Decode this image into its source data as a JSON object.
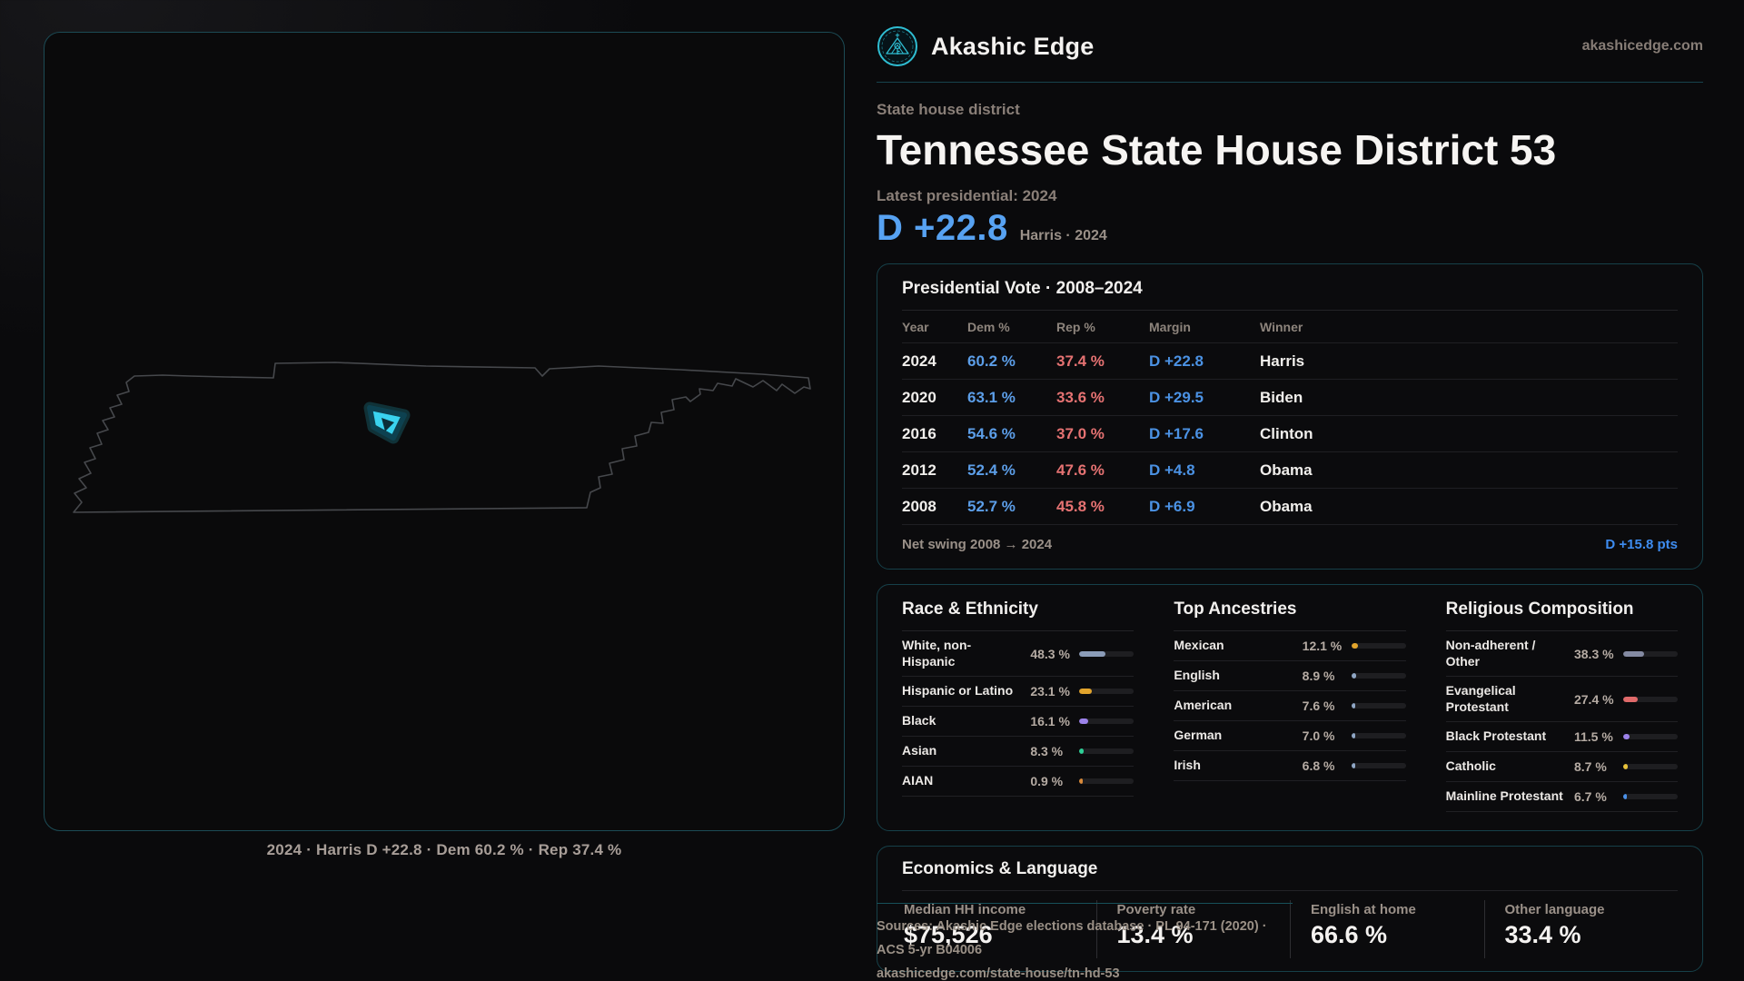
{
  "brand": {
    "name": "Akashic Edge",
    "domain": "akashicedge.com",
    "accent_color": "#2fbdd2"
  },
  "header": {
    "kicker": "State house district",
    "title": "Tennessee State House District 53",
    "latest_label": "Latest presidential: 2024",
    "margin": "D +22.8",
    "margin_sub": "Harris · 2024",
    "margin_color": "#57a2f2"
  },
  "map": {
    "caption": "2024 · Harris D +22.8 · Dem 60.2 % · Rep 37.4 %",
    "district_highlight_color": "#3ad3f0"
  },
  "presidential": {
    "title": "Presidential Vote · 2008–2024",
    "columns": [
      "Year",
      "Dem %",
      "Rep %",
      "Margin",
      "Winner"
    ],
    "rows": [
      {
        "year": "2024",
        "dem": "60.2 %",
        "rep": "37.4 %",
        "margin": "D +22.8",
        "winner": "Harris"
      },
      {
        "year": "2020",
        "dem": "63.1 %",
        "rep": "33.6 %",
        "margin": "D +29.5",
        "winner": "Biden"
      },
      {
        "year": "2016",
        "dem": "54.6 %",
        "rep": "37.0 %",
        "margin": "D +17.6",
        "winner": "Clinton"
      },
      {
        "year": "2012",
        "dem": "52.4 %",
        "rep": "47.6 %",
        "margin": "D +4.8",
        "winner": "Obama"
      },
      {
        "year": "2008",
        "dem": "52.7 %",
        "rep": "45.8 %",
        "margin": "D +6.9",
        "winner": "Obama"
      }
    ],
    "net_swing_label": "Net swing 2008 → 2024",
    "net_swing_value": "D +15.8 pts",
    "dem_color": "#5c9ee8",
    "rep_color": "#e57272"
  },
  "demographics": {
    "groups": [
      {
        "key": "race",
        "title": "Race & Ethnicity",
        "rows": [
          {
            "label": "White, non-Hispanic",
            "value": "48.3 %",
            "pct": 48.3,
            "color": "#8b9cb8"
          },
          {
            "label": "Hispanic or Latino",
            "value": "23.1 %",
            "pct": 23.1,
            "color": "#e2a42c"
          },
          {
            "label": "Black",
            "value": "16.1 %",
            "pct": 16.1,
            "color": "#9c82ea"
          },
          {
            "label": "Asian",
            "value": "8.3 %",
            "pct": 8.3,
            "color": "#2ecf96"
          },
          {
            "label": "AIAN",
            "value": "0.9 %",
            "pct": 0.9,
            "color": "#d98a3a"
          }
        ]
      },
      {
        "key": "ancestries",
        "title": "Top Ancestries",
        "rows": [
          {
            "label": "Mexican",
            "value": "12.1 %",
            "pct": 12.1,
            "color": "#e2a42c"
          },
          {
            "label": "English",
            "value": "8.9 %",
            "pct": 8.9,
            "color": "#8fa6c4"
          },
          {
            "label": "American",
            "value": "7.6 %",
            "pct": 7.6,
            "color": "#8fa6c4"
          },
          {
            "label": "German",
            "value": "7.0 %",
            "pct": 7.0,
            "color": "#8fa6c4"
          },
          {
            "label": "Irish",
            "value": "6.8 %",
            "pct": 6.8,
            "color": "#8fa6c4"
          }
        ]
      },
      {
        "key": "religion",
        "title": "Religious Composition",
        "rows": [
          {
            "label": "Non-adherent / Other",
            "value": "38.3 %",
            "pct": 38.3,
            "color": "#848aa2"
          },
          {
            "label": "Evangelical Protestant",
            "value": "27.4 %",
            "pct": 27.4,
            "color": "#e06a6a"
          },
          {
            "label": "Black Protestant",
            "value": "11.5 %",
            "pct": 11.5,
            "color": "#9c82ea"
          },
          {
            "label": "Catholic",
            "value": "8.7 %",
            "pct": 8.7,
            "color": "#e8c33a"
          },
          {
            "label": "Mainline Protestant",
            "value": "6.7 %",
            "pct": 6.7,
            "color": "#4a90e8"
          }
        ]
      }
    ]
  },
  "economics": {
    "title": "Economics & Language",
    "stats": [
      {
        "label": "Median HH income",
        "value": "$75,526"
      },
      {
        "label": "Poverty rate",
        "value": "13.4 %"
      },
      {
        "label": "English at home",
        "value": "66.6 %"
      },
      {
        "label": "Other language",
        "value": "33.4 %"
      }
    ]
  },
  "sources": {
    "line1": "Sources: Akashic Edge elections database · PL 94-171 (2020) · ACS 5-yr B04006",
    "line2": "akashicedge.com/state-house/tn-hd-53"
  }
}
